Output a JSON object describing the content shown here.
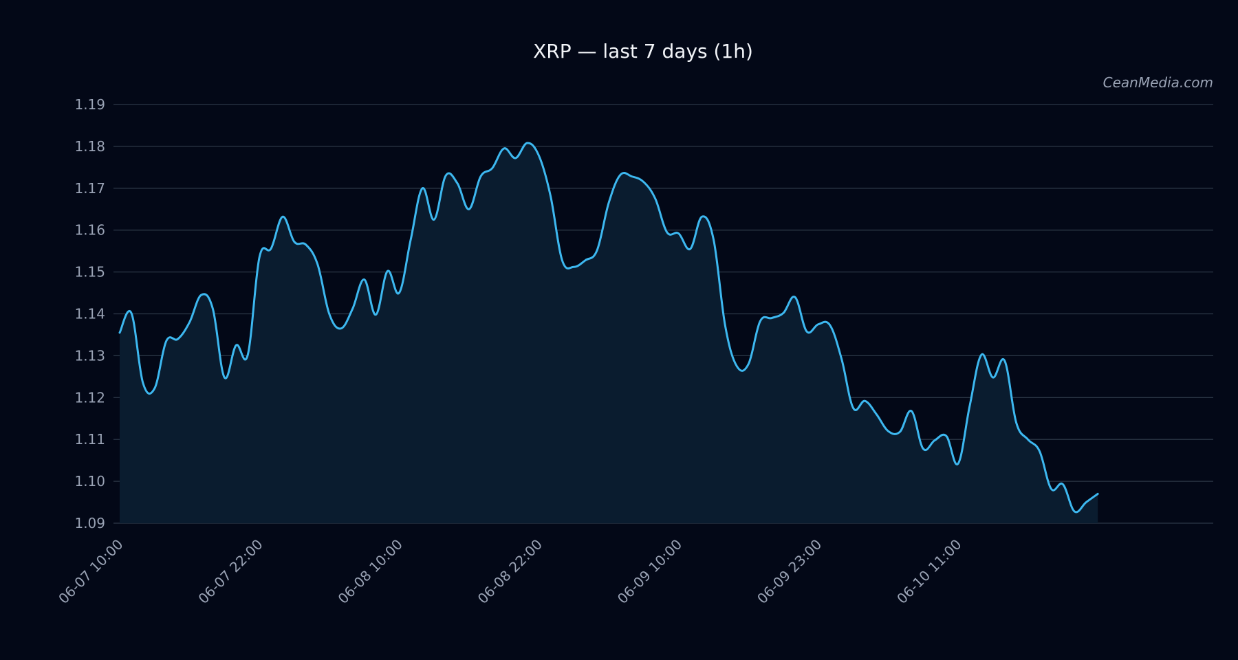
{
  "chart_data": {
    "type": "line",
    "title": "XRP — last 7 days (1h)",
    "watermark": "CeanMedia.com",
    "xlabel": "",
    "ylabel": "",
    "ylim": [
      1.09,
      1.19
    ],
    "yticks": [
      "1.09",
      "1.10",
      "1.11",
      "1.12",
      "1.13",
      "1.14",
      "1.15",
      "1.16",
      "1.17",
      "1.18",
      "1.19"
    ],
    "xticks": [
      {
        "label": "06-07 10:00",
        "hour": 0
      },
      {
        "label": "06-07 22:00",
        "hour": 12
      },
      {
        "label": "06-08 10:00",
        "hour": 24
      },
      {
        "label": "06-08 22:00",
        "hour": 36
      },
      {
        "label": "06-09 10:00",
        "hour": 48
      },
      {
        "label": "06-09 23:00",
        "hour": 60
      },
      {
        "label": "06-10 11:00",
        "hour": 72
      }
    ],
    "grid": true,
    "line_color": "#3db8f0",
    "fill_color": "#0a1c2f",
    "background": "#030817",
    "series": [
      {
        "name": "",
        "values": [
          1.1355,
          1.1402,
          1.1235,
          1.1222,
          1.1335,
          1.134,
          1.138,
          1.1445,
          1.1412,
          1.1248,
          1.1325,
          1.1302,
          1.1535,
          1.1556,
          1.1632,
          1.1572,
          1.1565,
          1.1518,
          1.14,
          1.1365,
          1.1412,
          1.1482,
          1.1398,
          1.1502,
          1.145,
          1.1578,
          1.17,
          1.1625,
          1.173,
          1.1712,
          1.165,
          1.1728,
          1.1748,
          1.1795,
          1.1772,
          1.1808,
          1.1778,
          1.1682,
          1.1528,
          1.1512,
          1.1528,
          1.1552,
          1.1665,
          1.1732,
          1.1728,
          1.1715,
          1.1675,
          1.1595,
          1.1592,
          1.1555,
          1.1632,
          1.1578,
          1.1372,
          1.1275,
          1.128,
          1.1382,
          1.139,
          1.1402,
          1.144,
          1.1358,
          1.1375,
          1.1373,
          1.1292,
          1.1175,
          1.1192,
          1.116,
          1.112,
          1.1118,
          1.1168,
          1.1078,
          1.1098,
          1.1108,
          1.1042,
          1.118,
          1.1302,
          1.1248,
          1.1288,
          1.114,
          1.11,
          1.1072,
          1.0982,
          1.0993,
          1.0928,
          1.095,
          1.097
        ]
      }
    ]
  }
}
